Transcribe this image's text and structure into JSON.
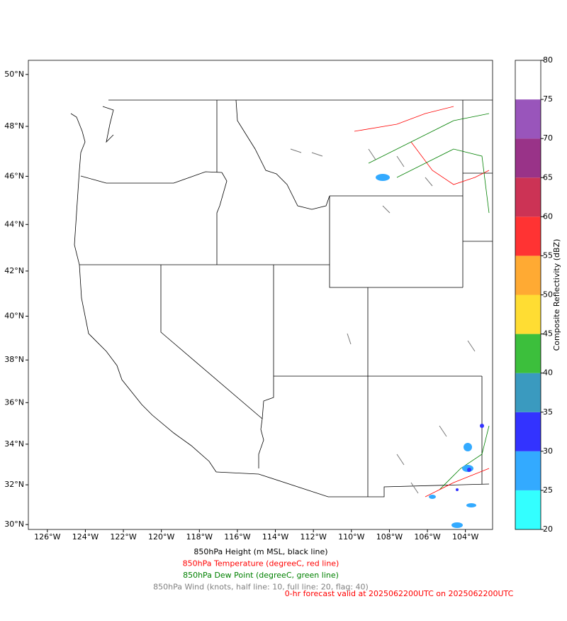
{
  "map": {
    "xlim": [
      -127,
      -102.57
    ],
    "ylim": [
      29.75,
      50.53
    ],
    "xticks": [
      {
        "value": -126,
        "label": "126°W"
      },
      {
        "value": -124,
        "label": "124°W"
      },
      {
        "value": -122,
        "label": "122°W"
      },
      {
        "value": -120,
        "label": "120°W"
      },
      {
        "value": -118,
        "label": "118°W"
      },
      {
        "value": -116,
        "label": "116°W"
      },
      {
        "value": -114,
        "label": "114°W"
      },
      {
        "value": -112,
        "label": "112°W"
      },
      {
        "value": -110,
        "label": "110°W"
      },
      {
        "value": -108,
        "label": "108°W"
      },
      {
        "value": -106,
        "label": "106°W"
      },
      {
        "value": -104,
        "label": "104°W"
      }
    ],
    "yticks": [
      {
        "value": 30,
        "label": "30°N"
      },
      {
        "value": 32,
        "label": "32°N"
      },
      {
        "value": 34,
        "label": "34°N"
      },
      {
        "value": 36,
        "label": "36°N"
      },
      {
        "value": 38,
        "label": "38°N"
      },
      {
        "value": 40,
        "label": "40°N"
      },
      {
        "value": 42,
        "label": "42°N"
      },
      {
        "value": 44,
        "label": "44°N"
      },
      {
        "value": 46,
        "label": "46°N"
      },
      {
        "value": 48,
        "label": "48°N"
      },
      {
        "value": 50,
        "label": "50°N"
      }
    ]
  },
  "colorbar": {
    "label": "Composite Reflectivity (dBZ)",
    "lim": [
      20,
      80
    ],
    "ticks": [
      20,
      25,
      30,
      35,
      40,
      45,
      50,
      55,
      60,
      65,
      70,
      75,
      80
    ],
    "bins": [
      20,
      25,
      30,
      35,
      40,
      45,
      50,
      55,
      60,
      65,
      70,
      75,
      80
    ],
    "colors": [
      "#33ffff",
      "#33aaff",
      "#3333ff",
      "#3a9abf",
      "#3cbf3c",
      "#ffdd33",
      "#ffaa33",
      "#ff3333",
      "#cc3355",
      "#993388",
      "#9955bb",
      "#ffffff"
    ]
  },
  "legend": [
    {
      "text": "850hPa Height (m MSL, black line)",
      "color": "#000000"
    },
    {
      "text": "850hPa Temperature (degreeC, red line)",
      "color": "#ff0000"
    },
    {
      "text": "850hPa Dew Point (degreeC, green line)",
      "color": "#008000"
    },
    {
      "text": "850hPa Wind (knots, half line: 10, full line: 20, flag: 40)",
      "color": "#808080"
    }
  ],
  "footer": {
    "text": "0-hr forecast valid at 2025062200UTC on 2025062200UTC",
    "color": "#ff0000"
  }
}
